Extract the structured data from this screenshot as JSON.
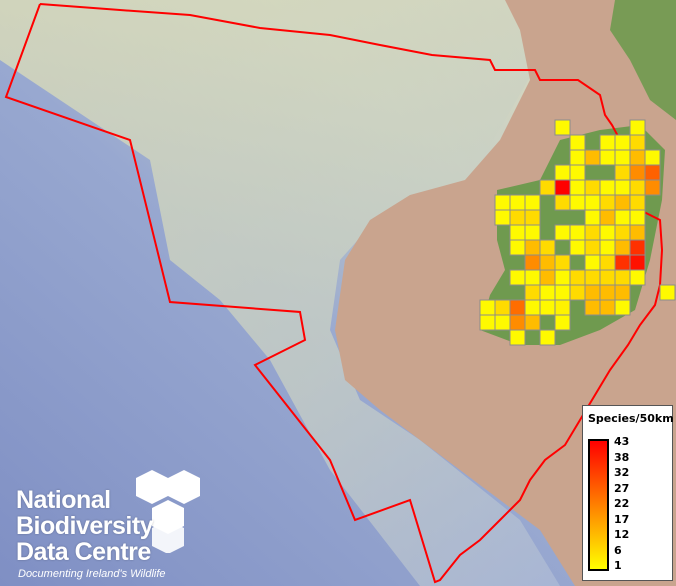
{
  "map": {
    "boundary_color": "#ff0000",
    "land_color": "#c9a48e",
    "sea_color": "#8a9ccc",
    "grid_stroke": "#8c8c8c",
    "grid_values": [
      [
        null,
        null,
        null,
        null,
        null,
        2,
        null,
        null,
        null,
        null,
        2,
        null,
        null
      ],
      [
        null,
        null,
        null,
        null,
        null,
        null,
        2,
        null,
        2,
        2,
        7,
        null,
        null
      ],
      [
        null,
        null,
        null,
        null,
        null,
        null,
        2,
        12,
        2,
        2,
        12,
        2,
        null
      ],
      [
        null,
        null,
        null,
        null,
        null,
        2,
        2,
        null,
        null,
        7,
        20,
        27,
        null
      ],
      [
        null,
        null,
        null,
        null,
        7,
        43,
        2,
        7,
        2,
        2,
        7,
        20,
        null
      ],
      [
        null,
        2,
        2,
        2,
        null,
        7,
        2,
        2,
        7,
        12,
        7,
        null,
        null
      ],
      [
        null,
        2,
        7,
        7,
        null,
        null,
        null,
        2,
        12,
        2,
        2,
        null,
        null
      ],
      [
        null,
        null,
        2,
        2,
        null,
        2,
        2,
        7,
        2,
        7,
        12,
        null,
        null
      ],
      [
        null,
        null,
        2,
        12,
        7,
        null,
        2,
        7,
        2,
        12,
        35,
        null,
        null
      ],
      [
        null,
        null,
        null,
        20,
        12,
        7,
        null,
        2,
        7,
        35,
        40,
        null,
        null
      ],
      [
        null,
        null,
        2,
        2,
        12,
        2,
        7,
        7,
        7,
        7,
        2,
        null,
        null
      ],
      [
        null,
        null,
        null,
        7,
        2,
        2,
        7,
        12,
        12,
        12,
        null,
        null,
        2
      ],
      [
        2,
        7,
        25,
        2,
        2,
        3,
        null,
        12,
        12,
        2,
        null,
        null,
        null
      ],
      [
        2,
        2,
        20,
        12,
        null,
        2,
        null,
        null,
        null,
        null,
        null,
        null,
        null
      ],
      [
        null,
        null,
        2,
        null,
        2,
        null,
        null,
        null,
        null,
        null,
        null,
        null,
        null
      ]
    ]
  },
  "legend": {
    "title": "Species/50km",
    "ticks": [
      "43",
      "38",
      "32",
      "27",
      "22",
      "17",
      "12",
      "6",
      "1"
    ],
    "min": 1,
    "max": 43,
    "colors": [
      "#ffff00",
      "#ff8000",
      "#ff0000"
    ]
  },
  "logo": {
    "line1": "National",
    "line2": "Biodiversity",
    "line3": "Data Centre",
    "tagline": "Documenting Ireland's Wildlife"
  }
}
